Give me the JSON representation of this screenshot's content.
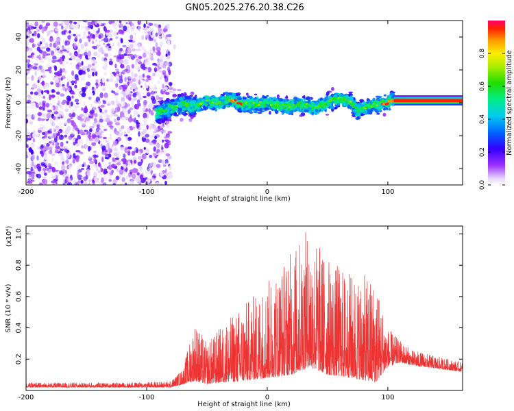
{
  "title": "GN05.2025.276.20.38.C26",
  "chart_data": [
    {
      "type": "heatmap",
      "name": "spectrogram",
      "xlabel": "Height of straight line (km)",
      "ylabel": "Frequency (Hz)",
      "xlim": [
        -200,
        162
      ],
      "ylim": [
        -50,
        50
      ],
      "xticks": [
        -200,
        -100,
        0,
        100
      ],
      "yticks": [
        -40,
        -20,
        0,
        20,
        40
      ],
      "noise_region_x": [
        -200,
        -80
      ],
      "signal_region_x": [
        -92,
        105
      ],
      "steady_tone_x": [
        105,
        162
      ],
      "ridge": [
        {
          "x": -90,
          "y": -6
        },
        {
          "x": -80,
          "y": -3
        },
        {
          "x": -70,
          "y": -1
        },
        {
          "x": -60,
          "y": -2
        },
        {
          "x": -50,
          "y": 1
        },
        {
          "x": -40,
          "y": 0
        },
        {
          "x": -30,
          "y": 2
        },
        {
          "x": -20,
          "y": -1
        },
        {
          "x": -10,
          "y": -1
        },
        {
          "x": 0,
          "y": 0
        },
        {
          "x": 10,
          "y": -2
        },
        {
          "x": 20,
          "y": -2
        },
        {
          "x": 30,
          "y": -1
        },
        {
          "x": 40,
          "y": -3
        },
        {
          "x": 50,
          "y": 0
        },
        {
          "x": 60,
          "y": 3
        },
        {
          "x": 70,
          "y": 0
        },
        {
          "x": 75,
          "y": -5
        },
        {
          "x": 80,
          "y": -3
        },
        {
          "x": 90,
          "y": -1
        },
        {
          "x": 100,
          "y": 0
        },
        {
          "x": 105,
          "y": 2
        }
      ],
      "colorbar": {
        "label": "Normalized spectral amplitude",
        "range": [
          0.0,
          1.0
        ],
        "ticks": [
          0.0,
          0.2,
          0.4,
          0.6,
          0.8
        ],
        "tick_labels": [
          "0.0",
          "0.2",
          "0.4",
          "0.6",
          "0.8"
        ]
      }
    },
    {
      "type": "line",
      "name": "snr",
      "xlabel": "Height of straight line (km)",
      "ylabel": "SNR (10 * v/v)",
      "scale_label": "(x10⁴)",
      "xlim": [
        -200,
        162
      ],
      "ylim": [
        0,
        1.05
      ],
      "xticks": [
        -200,
        -100,
        0,
        100
      ],
      "yticks": [
        0.2,
        0.4,
        0.6,
        0.8,
        1.0
      ],
      "color": "#ee3333",
      "envelope": [
        {
          "x": -200,
          "low": 0.02,
          "high": 0.05
        },
        {
          "x": -120,
          "low": 0.02,
          "high": 0.05
        },
        {
          "x": -80,
          "low": 0.02,
          "high": 0.06
        },
        {
          "x": -70,
          "low": 0.04,
          "high": 0.14
        },
        {
          "x": -60,
          "low": 0.06,
          "high": 0.45
        },
        {
          "x": -50,
          "low": 0.04,
          "high": 0.3
        },
        {
          "x": -40,
          "low": 0.05,
          "high": 0.4
        },
        {
          "x": -20,
          "low": 0.06,
          "high": 0.55
        },
        {
          "x": 0,
          "low": 0.08,
          "high": 0.7
        },
        {
          "x": 20,
          "low": 0.1,
          "high": 0.9
        },
        {
          "x": 35,
          "low": 0.15,
          "high": 1.05
        },
        {
          "x": 50,
          "low": 0.1,
          "high": 0.85
        },
        {
          "x": 70,
          "low": 0.08,
          "high": 0.75
        },
        {
          "x": 90,
          "low": 0.05,
          "high": 0.72
        },
        {
          "x": 100,
          "low": 0.15,
          "high": 0.4
        },
        {
          "x": 110,
          "low": 0.18,
          "high": 0.32
        },
        {
          "x": 120,
          "low": 0.16,
          "high": 0.26
        },
        {
          "x": 140,
          "low": 0.14,
          "high": 0.22
        },
        {
          "x": 162,
          "low": 0.12,
          "high": 0.18
        }
      ]
    }
  ]
}
